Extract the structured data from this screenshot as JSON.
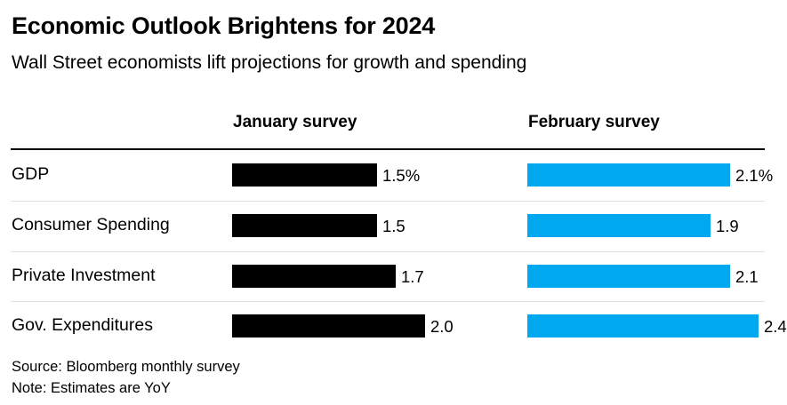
{
  "header": {
    "title": "Economic Outlook Brightens for 2024",
    "subtitle": "Wall Street economists lift projections for growth and spending"
  },
  "footer": {
    "source": "Source: Bloomberg monthly survey",
    "note": "Note: Estimates are YoY"
  },
  "colors": {
    "january": "#000000",
    "february": "#00a8f0"
  },
  "chart_data": {
    "type": "bar",
    "orientation": "horizontal",
    "layout": "small-multiples",
    "categories": [
      "GDP",
      "Consumer Spending",
      "Private Investment",
      "Gov. Expenditures"
    ],
    "series": [
      {
        "name": "January survey",
        "values": [
          1.5,
          1.5,
          1.7,
          2.0
        ],
        "labels": [
          "1.5%",
          "1.5",
          "1.7",
          "2.0"
        ]
      },
      {
        "name": "February survey",
        "values": [
          2.1,
          1.9,
          2.1,
          2.4
        ],
        "labels": [
          "2.1%",
          "1.9",
          "2.1",
          "2.4"
        ]
      }
    ],
    "unit": "%",
    "xlim": [
      0,
      2.4
    ],
    "grid": false
  }
}
